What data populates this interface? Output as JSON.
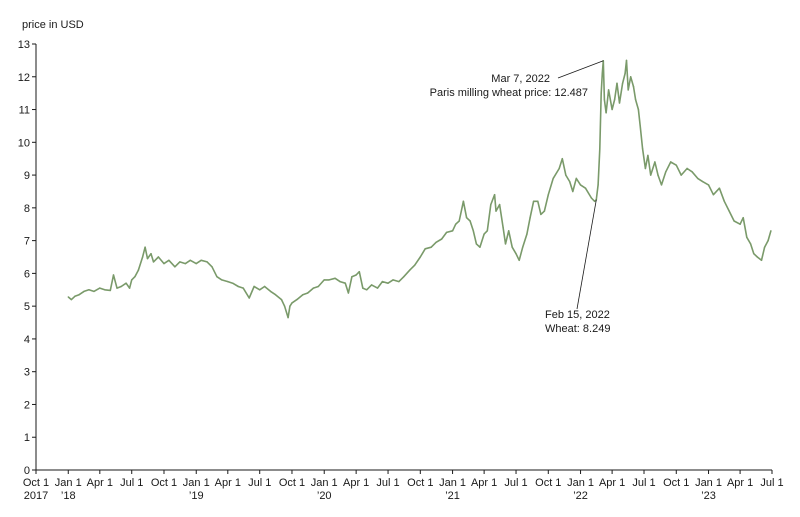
{
  "chart_data": {
    "type": "line",
    "title": "",
    "ylabel": "price in USD",
    "xlabel": "",
    "ylim": [
      0,
      13
    ],
    "y_ticks": [
      "0",
      "1",
      "2",
      "3",
      "4",
      "5",
      "6",
      "7",
      "8",
      "9",
      "10",
      "11",
      "12",
      "13"
    ],
    "x_range": [
      "2017-10-01",
      "2023-07-01"
    ],
    "x_ticks": [
      {
        "date": "2017-10-01",
        "label": "Oct 1",
        "year": "2017"
      },
      {
        "date": "2018-01-01",
        "label": "Jan 1",
        "year": "’18"
      },
      {
        "date": "2018-04-01",
        "label": "Apr 1",
        "year": ""
      },
      {
        "date": "2018-07-01",
        "label": "Jul 1",
        "year": ""
      },
      {
        "date": "2018-10-01",
        "label": "Oct 1",
        "year": ""
      },
      {
        "date": "2019-01-01",
        "label": "Jan 1",
        "year": "’19"
      },
      {
        "date": "2019-04-01",
        "label": "Apr 1",
        "year": ""
      },
      {
        "date": "2019-07-01",
        "label": "Jul 1",
        "year": ""
      },
      {
        "date": "2019-10-01",
        "label": "Oct 1",
        "year": ""
      },
      {
        "date": "2020-01-01",
        "label": "Jan 1",
        "year": "’20"
      },
      {
        "date": "2020-04-01",
        "label": "Apr 1",
        "year": ""
      },
      {
        "date": "2020-07-01",
        "label": "Jul 1",
        "year": ""
      },
      {
        "date": "2020-10-01",
        "label": "Oct 1",
        "year": ""
      },
      {
        "date": "2021-01-01",
        "label": "Jan 1",
        "year": "’21"
      },
      {
        "date": "2021-04-01",
        "label": "Apr 1",
        "year": ""
      },
      {
        "date": "2021-07-01",
        "label": "Jul 1",
        "year": ""
      },
      {
        "date": "2021-10-01",
        "label": "Oct 1",
        "year": ""
      },
      {
        "date": "2022-01-01",
        "label": "Jan 1",
        "year": "’22"
      },
      {
        "date": "2022-04-01",
        "label": "Apr 1",
        "year": ""
      },
      {
        "date": "2022-07-01",
        "label": "Jul 1",
        "year": ""
      },
      {
        "date": "2022-10-01",
        "label": "Oct 1",
        "year": ""
      },
      {
        "date": "2023-01-01",
        "label": "Jan 1",
        "year": "’23"
      },
      {
        "date": "2023-04-01",
        "label": "Apr 1",
        "year": ""
      },
      {
        "date": "2023-07-01",
        "label": "Jul 1",
        "year": ""
      }
    ],
    "series": [
      {
        "name": "Paris milling wheat price",
        "color": "#7a9a6a",
        "points": [
          [
            "2018-01-01",
            5.28
          ],
          [
            "2018-01-10",
            5.2
          ],
          [
            "2018-01-20",
            5.3
          ],
          [
            "2018-02-01",
            5.35
          ],
          [
            "2018-02-15",
            5.45
          ],
          [
            "2018-03-01",
            5.5
          ],
          [
            "2018-03-15",
            5.45
          ],
          [
            "2018-04-01",
            5.55
          ],
          [
            "2018-04-15",
            5.5
          ],
          [
            "2018-05-01",
            5.48
          ],
          [
            "2018-05-10",
            5.95
          ],
          [
            "2018-05-20",
            5.55
          ],
          [
            "2018-06-01",
            5.6
          ],
          [
            "2018-06-15",
            5.7
          ],
          [
            "2018-06-25",
            5.55
          ],
          [
            "2018-07-01",
            5.8
          ],
          [
            "2018-07-10",
            5.9
          ],
          [
            "2018-07-20",
            6.1
          ],
          [
            "2018-08-01",
            6.5
          ],
          [
            "2018-08-08",
            6.8
          ],
          [
            "2018-08-15",
            6.45
          ],
          [
            "2018-08-25",
            6.6
          ],
          [
            "2018-09-01",
            6.35
          ],
          [
            "2018-09-15",
            6.5
          ],
          [
            "2018-10-01",
            6.3
          ],
          [
            "2018-10-15",
            6.4
          ],
          [
            "2018-11-01",
            6.2
          ],
          [
            "2018-11-15",
            6.35
          ],
          [
            "2018-12-01",
            6.3
          ],
          [
            "2018-12-15",
            6.4
          ],
          [
            "2019-01-01",
            6.3
          ],
          [
            "2019-01-15",
            6.4
          ],
          [
            "2019-02-01",
            6.35
          ],
          [
            "2019-02-15",
            6.2
          ],
          [
            "2019-03-01",
            5.9
          ],
          [
            "2019-03-15",
            5.8
          ],
          [
            "2019-04-01",
            5.75
          ],
          [
            "2019-04-15",
            5.7
          ],
          [
            "2019-05-01",
            5.6
          ],
          [
            "2019-05-15",
            5.55
          ],
          [
            "2019-06-01",
            5.25
          ],
          [
            "2019-06-15",
            5.6
          ],
          [
            "2019-07-01",
            5.5
          ],
          [
            "2019-07-15",
            5.6
          ],
          [
            "2019-08-01",
            5.45
          ],
          [
            "2019-08-15",
            5.35
          ],
          [
            "2019-09-01",
            5.2
          ],
          [
            "2019-09-10",
            5.0
          ],
          [
            "2019-09-20",
            4.65
          ],
          [
            "2019-09-25",
            5.0
          ],
          [
            "2019-10-01",
            5.1
          ],
          [
            "2019-10-15",
            5.2
          ],
          [
            "2019-11-01",
            5.35
          ],
          [
            "2019-11-15",
            5.4
          ],
          [
            "2019-12-01",
            5.55
          ],
          [
            "2019-12-15",
            5.6
          ],
          [
            "2020-01-01",
            5.8
          ],
          [
            "2020-01-15",
            5.8
          ],
          [
            "2020-02-01",
            5.85
          ],
          [
            "2020-02-15",
            5.75
          ],
          [
            "2020-03-01",
            5.7
          ],
          [
            "2020-03-10",
            5.4
          ],
          [
            "2020-03-20",
            5.9
          ],
          [
            "2020-04-01",
            5.95
          ],
          [
            "2020-04-10",
            6.05
          ],
          [
            "2020-04-20",
            5.55
          ],
          [
            "2020-05-01",
            5.5
          ],
          [
            "2020-05-15",
            5.65
          ],
          [
            "2020-06-01",
            5.55
          ],
          [
            "2020-06-15",
            5.75
          ],
          [
            "2020-07-01",
            5.7
          ],
          [
            "2020-07-15",
            5.8
          ],
          [
            "2020-08-01",
            5.75
          ],
          [
            "2020-08-15",
            5.9
          ],
          [
            "2020-09-01",
            6.1
          ],
          [
            "2020-09-15",
            6.25
          ],
          [
            "2020-10-01",
            6.5
          ],
          [
            "2020-10-15",
            6.75
          ],
          [
            "2020-11-01",
            6.8
          ],
          [
            "2020-11-15",
            6.95
          ],
          [
            "2020-12-01",
            7.05
          ],
          [
            "2020-12-15",
            7.25
          ],
          [
            "2021-01-01",
            7.3
          ],
          [
            "2021-01-10",
            7.5
          ],
          [
            "2021-01-20",
            7.6
          ],
          [
            "2021-02-01",
            8.2
          ],
          [
            "2021-02-10",
            7.7
          ],
          [
            "2021-02-20",
            7.6
          ],
          [
            "2021-03-01",
            7.3
          ],
          [
            "2021-03-10",
            6.9
          ],
          [
            "2021-03-20",
            6.8
          ],
          [
            "2021-04-01",
            7.2
          ],
          [
            "2021-04-10",
            7.3
          ],
          [
            "2021-04-20",
            8.1
          ],
          [
            "2021-05-01",
            8.4
          ],
          [
            "2021-05-05",
            7.9
          ],
          [
            "2021-05-15",
            8.1
          ],
          [
            "2021-05-25",
            7.4
          ],
          [
            "2021-06-01",
            6.9
          ],
          [
            "2021-06-10",
            7.3
          ],
          [
            "2021-06-20",
            6.8
          ],
          [
            "2021-07-01",
            6.6
          ],
          [
            "2021-07-10",
            6.4
          ],
          [
            "2021-07-20",
            6.8
          ],
          [
            "2021-08-01",
            7.2
          ],
          [
            "2021-08-10",
            7.7
          ],
          [
            "2021-08-20",
            8.2
          ],
          [
            "2021-09-01",
            8.2
          ],
          [
            "2021-09-10",
            7.8
          ],
          [
            "2021-09-20",
            7.9
          ],
          [
            "2021-10-01",
            8.4
          ],
          [
            "2021-10-15",
            8.9
          ],
          [
            "2021-11-01",
            9.2
          ],
          [
            "2021-11-10",
            9.5
          ],
          [
            "2021-11-20",
            9.0
          ],
          [
            "2021-12-01",
            8.8
          ],
          [
            "2021-12-10",
            8.5
          ],
          [
            "2021-12-20",
            8.9
          ],
          [
            "2022-01-01",
            8.7
          ],
          [
            "2022-01-15",
            8.6
          ],
          [
            "2022-02-01",
            8.3
          ],
          [
            "2022-02-10",
            8.2
          ],
          [
            "2022-02-15",
            8.249
          ],
          [
            "2022-02-20",
            8.7
          ],
          [
            "2022-02-25",
            9.8
          ],
          [
            "2022-03-01",
            11.5
          ],
          [
            "2022-03-04",
            12.1
          ],
          [
            "2022-03-07",
            12.487
          ],
          [
            "2022-03-10",
            11.3
          ],
          [
            "2022-03-15",
            10.9
          ],
          [
            "2022-03-22",
            11.6
          ],
          [
            "2022-04-01",
            11.0
          ],
          [
            "2022-04-08",
            11.3
          ],
          [
            "2022-04-15",
            11.8
          ],
          [
            "2022-04-22",
            11.2
          ],
          [
            "2022-05-01",
            11.8
          ],
          [
            "2022-05-08",
            12.1
          ],
          [
            "2022-05-12",
            12.5
          ],
          [
            "2022-05-17",
            11.6
          ],
          [
            "2022-05-24",
            12.0
          ],
          [
            "2022-06-01",
            11.7
          ],
          [
            "2022-06-07",
            11.3
          ],
          [
            "2022-06-15",
            11.0
          ],
          [
            "2022-06-20",
            10.5
          ],
          [
            "2022-06-27",
            9.8
          ],
          [
            "2022-07-05",
            9.2
          ],
          [
            "2022-07-12",
            9.6
          ],
          [
            "2022-07-20",
            9.0
          ],
          [
            "2022-08-01",
            9.4
          ],
          [
            "2022-08-10",
            9.0
          ],
          [
            "2022-08-20",
            8.7
          ],
          [
            "2022-09-01",
            9.1
          ],
          [
            "2022-09-15",
            9.4
          ],
          [
            "2022-10-01",
            9.3
          ],
          [
            "2022-10-15",
            9.0
          ],
          [
            "2022-11-01",
            9.2
          ],
          [
            "2022-11-15",
            9.1
          ],
          [
            "2022-12-01",
            8.9
          ],
          [
            "2022-12-15",
            8.8
          ],
          [
            "2023-01-01",
            8.7
          ],
          [
            "2023-01-15",
            8.4
          ],
          [
            "2023-02-01",
            8.6
          ],
          [
            "2023-02-15",
            8.2
          ],
          [
            "2023-03-01",
            7.9
          ],
          [
            "2023-03-15",
            7.6
          ],
          [
            "2023-04-01",
            7.5
          ],
          [
            "2023-04-10",
            7.7
          ],
          [
            "2023-04-20",
            7.1
          ],
          [
            "2023-05-01",
            6.9
          ],
          [
            "2023-05-10",
            6.6
          ],
          [
            "2023-05-20",
            6.5
          ],
          [
            "2023-06-01",
            6.4
          ],
          [
            "2023-06-10",
            6.8
          ],
          [
            "2023-06-20",
            7.0
          ],
          [
            "2023-06-28",
            7.3
          ]
        ]
      }
    ],
    "annotations": [
      {
        "date": "2022-03-07",
        "value": 12.487,
        "line1": "Mar 7, 2022",
        "line2": "Paris milling wheat price: 12.487"
      },
      {
        "date": "2022-02-15",
        "value": 8.249,
        "line1": "Feb 15, 2022",
        "line2": "Wheat: 8.249"
      }
    ]
  }
}
